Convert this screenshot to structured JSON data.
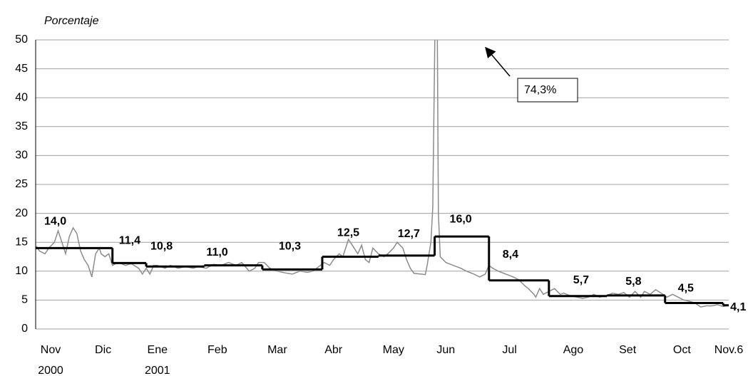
{
  "chart_data": {
    "type": "line",
    "y_axis_label": "Porcentaje",
    "ylim": [
      0,
      50
    ],
    "yticks": [
      0,
      5,
      10,
      15,
      20,
      25,
      30,
      35,
      40,
      45,
      50
    ],
    "grid": true,
    "xlim": [
      0,
      370
    ],
    "xticks": [
      {
        "value": 8,
        "label": "Nov"
      },
      {
        "value": 36,
        "label": "Dic"
      },
      {
        "value": 65,
        "label": "Ene"
      },
      {
        "value": 97,
        "label": "Feb"
      },
      {
        "value": 129,
        "label": "Mar"
      },
      {
        "value": 159,
        "label": "Abr"
      },
      {
        "value": 191,
        "label": "May"
      },
      {
        "value": 219,
        "label": "Jun"
      },
      {
        "value": 253,
        "label": "Jul"
      },
      {
        "value": 287,
        "label": "Ago"
      },
      {
        "value": 316,
        "label": "Set"
      },
      {
        "value": 345,
        "label": "Oct"
      },
      {
        "value": 370,
        "label": "Nov.6"
      }
    ],
    "x_sublabels": [
      {
        "value": 8,
        "label": "2000"
      },
      {
        "value": 65,
        "label": "2001"
      }
    ],
    "series": [
      {
        "color": "#8c8c8c",
        "x": [
          0,
          2,
          5,
          7,
          10,
          12,
          14,
          16,
          18,
          20,
          22,
          24,
          26,
          28,
          29,
          30,
          31,
          32,
          34,
          35,
          37,
          39,
          41,
          44,
          48,
          51,
          55,
          57,
          59,
          61,
          63,
          65,
          69,
          72,
          76,
          80,
          84,
          87,
          91,
          95,
          99,
          103,
          107,
          110,
          114,
          117,
          119,
          122,
          125,
          129,
          133,
          137,
          141,
          145,
          148,
          152,
          154,
          157,
          159,
          162,
          164,
          167,
          170,
          172,
          174,
          176,
          178,
          180,
          183,
          186,
          188,
          191,
          193,
          196,
          198,
          200,
          202,
          206,
          208,
          209,
          211,
          212,
          214,
          215,
          216,
          219,
          223,
          227,
          230,
          234,
          237,
          240,
          242,
          244,
          247,
          251,
          255,
          258,
          261,
          263,
          266,
          267,
          269,
          271,
          274,
          277,
          280,
          282,
          285,
          289,
          292,
          295,
          298,
          301,
          305,
          308,
          311,
          314,
          317,
          320,
          323,
          325,
          328,
          331,
          334,
          337,
          340,
          343,
          346,
          349,
          352,
          355,
          358,
          361,
          364,
          367,
          370
        ],
        "values": [
          14.5,
          13.5,
          13,
          14,
          15,
          17,
          15,
          13,
          16,
          17.5,
          16.5,
          13.5,
          12,
          11,
          10,
          9,
          11,
          13,
          14,
          13,
          12.5,
          13,
          11,
          11.5,
          11,
          11.3,
          10.5,
          9.5,
          10.5,
          9.5,
          11,
          11,
          10.5,
          11,
          10.5,
          10.8,
          10.5,
          10.8,
          10.5,
          11.2,
          11,
          11.5,
          11,
          11.5,
          10,
          10.5,
          11.5,
          11.5,
          10.5,
          10,
          9.7,
          9.5,
          10,
          9.8,
          10,
          11,
          11.5,
          11,
          12,
          13,
          12.5,
          15.5,
          14,
          13,
          14.5,
          12,
          11.5,
          14,
          13,
          12.5,
          13,
          14,
          15,
          14,
          12,
          10.5,
          9.6,
          9.5,
          9.4,
          11,
          15,
          21,
          74.3,
          20,
          12.5,
          11.5,
          11,
          10.5,
          10,
          9.5,
          9,
          9.5,
          11,
          10.5,
          10,
          9.5,
          9,
          8.5,
          7.5,
          7,
          6,
          5.5,
          7,
          6,
          6.5,
          7,
          6,
          6.2,
          5.8,
          5.5,
          5.3,
          5.5,
          6,
          5.5,
          5.8,
          6.2,
          6,
          6.3,
          5.5,
          6.5,
          5.5,
          6.5,
          6,
          6.8,
          6.2,
          5.5,
          6,
          5.5,
          5,
          4.8,
          4.5,
          3.8,
          4,
          4,
          4.2,
          3.9,
          4.1
        ]
      }
    ],
    "steps": {
      "color": "#000000",
      "x_start": [
        0,
        41,
        59,
        90,
        121,
        153,
        183,
        213,
        242,
        274,
        305,
        336,
        367
      ],
      "x_end": [
        41,
        59,
        90,
        121,
        153,
        183,
        213,
        242,
        274,
        305,
        336,
        367,
        370
      ],
      "values": [
        14.0,
        11.4,
        10.8,
        11.0,
        10.3,
        12.5,
        12.7,
        16.0,
        8.4,
        5.7,
        5.8,
        4.5,
        4.1
      ],
      "value_labels": [
        "14,0",
        "11,4",
        "10,8",
        "11,0",
        "10,3",
        "12,5",
        "12,7",
        "16,0",
        "8,4",
        "5,7",
        "5,8",
        "4,5",
        "4,1"
      ]
    },
    "annotation": "74,3%"
  }
}
